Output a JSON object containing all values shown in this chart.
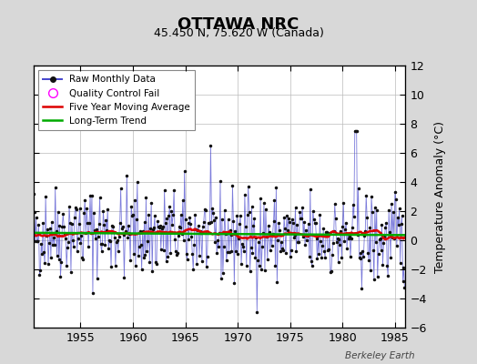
{
  "title": "OTTAWA NRC",
  "subtitle": "45.450 N, 75.620 W (Canada)",
  "ylabel": "Temperature Anomaly (°C)",
  "watermark": "Berkeley Earth",
  "ylim": [
    -6,
    12
  ],
  "yticks": [
    -6,
    -4,
    -2,
    0,
    2,
    4,
    6,
    8,
    10,
    12
  ],
  "xlim": [
    1950.5,
    1986.0
  ],
  "xticks": [
    1955,
    1960,
    1965,
    1970,
    1975,
    1980,
    1985
  ],
  "bg_color": "#d8d8d8",
  "plot_bg_color": "#ffffff",
  "line_color_raw": "#4444cc",
  "line_alpha": 0.7,
  "dot_color": "#111111",
  "moving_avg_color": "#dd0000",
  "trend_color": "#00aa00",
  "grid_color": "#bbbbbb",
  "legend_items": [
    "Raw Monthly Data",
    "Quality Control Fail",
    "Five Year Moving Average",
    "Long-Term Trend"
  ],
  "spike_year": 1981.25,
  "spike_value": 7.5,
  "seed": 42
}
